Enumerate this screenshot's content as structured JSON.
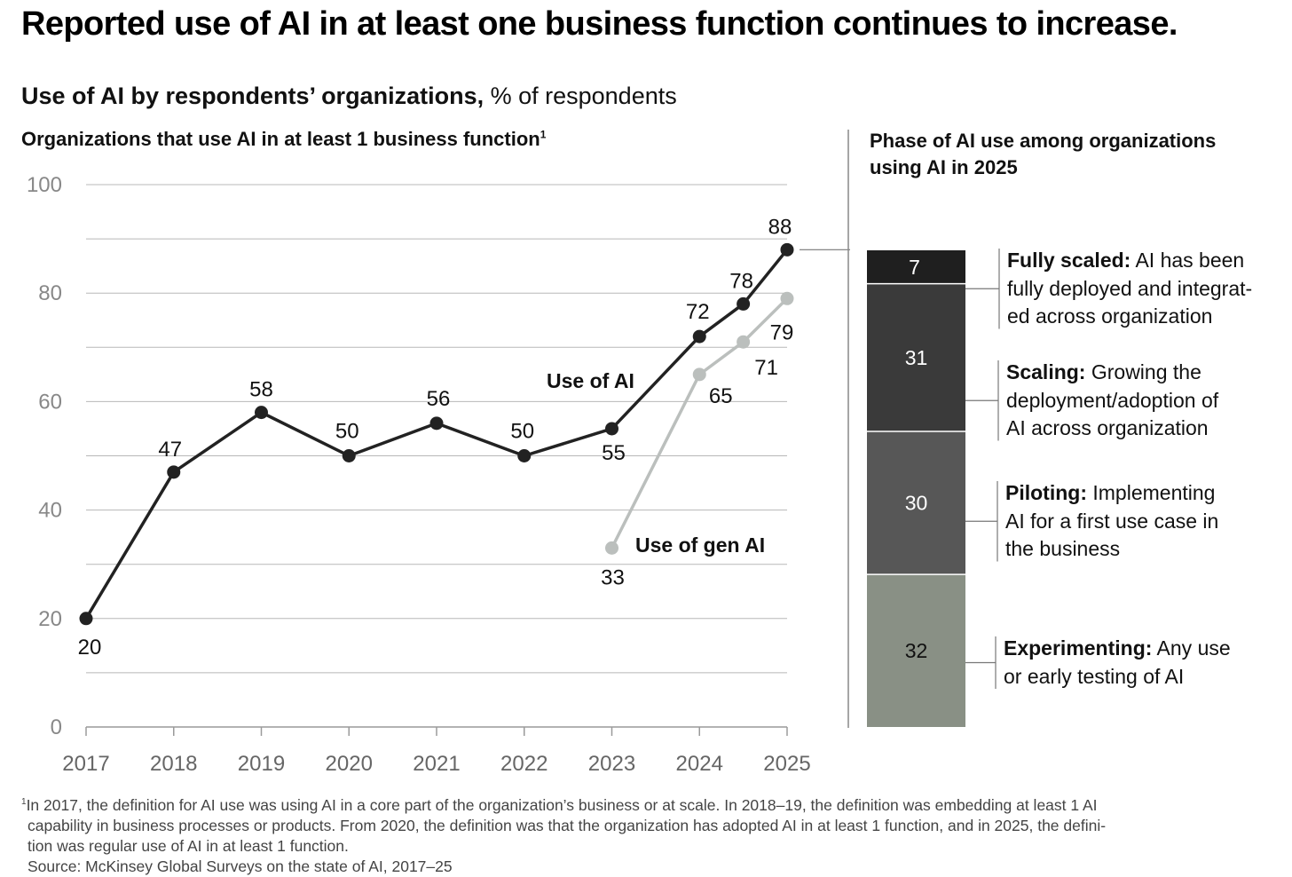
{
  "title": "Reported use of AI in at least one business function continues to increase.",
  "subtitle": {
    "bold": "Use of AI by respondents’ organizations,",
    "normal": " % of respondents"
  },
  "left_heading": {
    "text": "Organizations that use AI in at least 1 business function",
    "sup": "1"
  },
  "right_heading": "Phase of AI use among organizations using AI in 2025",
  "chart_data": [
    {
      "type": "line",
      "title": "Organizations that use AI in at least 1 business function",
      "x_ticks": [
        "2017",
        "2018",
        "2019",
        "2020",
        "2021",
        "2022",
        "2023",
        "2024",
        "2025"
      ],
      "y_ticks": [
        "0",
        "20",
        "40",
        "60",
        "80",
        "100"
      ],
      "ylim": [
        0,
        100
      ],
      "grid": true,
      "series": [
        {
          "name": "Use of AI",
          "color": "#222222",
          "points": [
            {
              "x": 2017,
              "y": 20,
              "label": "20"
            },
            {
              "x": 2018,
              "y": 47,
              "label": "47"
            },
            {
              "x": 2019,
              "y": 58,
              "label": "58"
            },
            {
              "x": 2020,
              "y": 50,
              "label": "50"
            },
            {
              "x": 2021,
              "y": 56,
              "label": "56"
            },
            {
              "x": 2022,
              "y": 50,
              "label": "50"
            },
            {
              "x": 2023,
              "y": 55,
              "label": "55"
            },
            {
              "x": 2024,
              "y": 72,
              "label": "72"
            },
            {
              "x": 2024.5,
              "y": 78,
              "label": "78"
            },
            {
              "x": 2025,
              "y": 88,
              "label": "88"
            }
          ]
        },
        {
          "name": "Use of gen AI",
          "color": "#bbbfbd",
          "points": [
            {
              "x": 2023,
              "y": 33,
              "label": "33"
            },
            {
              "x": 2024,
              "y": 65,
              "label": "65"
            },
            {
              "x": 2024.5,
              "y": 71,
              "label": "71"
            },
            {
              "x": 2025,
              "y": 79,
              "label": "79"
            }
          ]
        }
      ]
    },
    {
      "type": "bar",
      "title": "Phase of AI use among organizations using AI in 2025",
      "stacked": true,
      "segments": [
        {
          "name": "Experimenting",
          "value": 32,
          "label": "32",
          "color": "#899085",
          "text_color": "#111111",
          "desc_bold": "Experimenting:",
          "desc_lines": [
            " Any use",
            "or early testing of AI"
          ]
        },
        {
          "name": "Piloting",
          "value": 30,
          "label": "30",
          "color": "#575757",
          "text_color": "#ffffff",
          "desc_bold": "Piloting:",
          "desc_lines": [
            " Implementing",
            "AI for a first use case in",
            "the business"
          ]
        },
        {
          "name": "Scaling",
          "value": 31,
          "label": "31",
          "color": "#3a3a3a",
          "text_color": "#ffffff",
          "desc_bold": "Scaling:",
          "desc_lines": [
            " Growing the",
            "deployment/adoption of",
            "AI across organization"
          ]
        },
        {
          "name": "Fully scaled",
          "value": 7,
          "label": "7",
          "color": "#1f1f1f",
          "text_color": "#ffffff",
          "desc_bold": "Fully scaled:",
          "desc_lines": [
            " AI has been",
            "fully deployed and integrat-",
            "ed across organization"
          ]
        }
      ]
    }
  ],
  "footnote": {
    "sup": "1",
    "lines": [
      "In 2017, the definition for AI use was using AI in a core part of the organization’s business or at scale. In 2018–19, the definition was embedding at least 1 AI",
      "capability in business processes or products. From 2020, the definition was that the organization has adopted AI in at least 1 function, and in 2025, the defini-",
      "tion was regular use of AI in at least 1 function."
    ],
    "source": "Source: McKinsey Global Surveys on the state of AI, 2017–25"
  }
}
